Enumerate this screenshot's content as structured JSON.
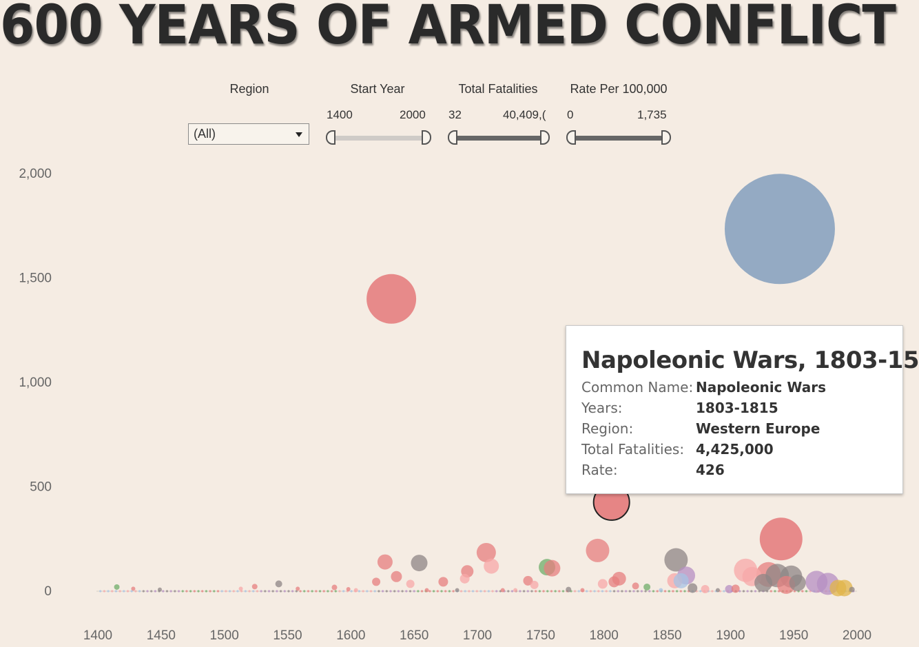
{
  "title": "600 YEARS OF ARMED CONFLICT",
  "filters": {
    "region": {
      "label": "Region",
      "selected": "(All)"
    },
    "start_year": {
      "label": "Start Year",
      "min": "1400",
      "max": "2000"
    },
    "total_fatalities": {
      "label": "Total Fatalities",
      "min": "32",
      "max": "40,409,("
    },
    "rate": {
      "label": "Rate Per 100,000",
      "min": "0",
      "max": "1,735"
    }
  },
  "tooltip": {
    "title": "Napoleonic Wars, 1803-15",
    "rows": [
      {
        "key": "Common Name:",
        "value": "Napoleonic Wars"
      },
      {
        "key": "Years:",
        "value": "1803-1815"
      },
      {
        "key": "Region:",
        "value": "Western Europe"
      },
      {
        "key": "Total Fatalities:",
        "value": "4,425,000"
      },
      {
        "key": "Rate:",
        "value": "426"
      }
    ]
  },
  "colors": {
    "background": "#f5ece3",
    "blue": "#8aa3bf",
    "red": "#e57f7f",
    "pink": "#f7a8a8",
    "grey": "#8e8585",
    "green": "#6fae6a",
    "purple": "#b58fc3",
    "gold": "#e0b44a",
    "lightblue": "#a7c3e4"
  },
  "chart_data": {
    "type": "scatter",
    "title": "",
    "xlabel": "",
    "ylabel": "",
    "x_ticks": [
      "1400",
      "1450",
      "1500",
      "1550",
      "1600",
      "1650",
      "1700",
      "1750",
      "1800",
      "1850",
      "1900",
      "1950",
      "2000"
    ],
    "y_ticks": [
      "0",
      "500",
      "1,000",
      "1,500",
      "2,000"
    ],
    "xlim": [
      1400,
      2000
    ],
    "ylim": [
      0,
      2000
    ],
    "points": [
      {
        "x": 1939,
        "y": 1735,
        "size": 80,
        "color": "blue"
      },
      {
        "x": 1632,
        "y": 1400,
        "size": 36,
        "color": "red"
      },
      {
        "x": 1806,
        "y": 426,
        "size": 26,
        "color": "red",
        "highlighted": true,
        "label": "Napoleonic Wars"
      },
      {
        "x": 1940,
        "y": 250,
        "size": 31,
        "color": "red"
      },
      {
        "x": 1795,
        "y": 195,
        "size": 17,
        "color": "red"
      },
      {
        "x": 1857,
        "y": 150,
        "size": 17,
        "color": "grey"
      },
      {
        "x": 1707,
        "y": 185,
        "size": 14,
        "color": "red"
      },
      {
        "x": 1627,
        "y": 140,
        "size": 11,
        "color": "red"
      },
      {
        "x": 1654,
        "y": 135,
        "size": 12,
        "color": "grey"
      },
      {
        "x": 1711,
        "y": 120,
        "size": 11,
        "color": "pink"
      },
      {
        "x": 1912,
        "y": 100,
        "size": 17,
        "color": "pink"
      },
      {
        "x": 1755,
        "y": 115,
        "size": 12,
        "color": "green"
      },
      {
        "x": 1759,
        "y": 110,
        "size": 12,
        "color": "red"
      },
      {
        "x": 1692,
        "y": 95,
        "size": 9,
        "color": "red"
      },
      {
        "x": 1636,
        "y": 70,
        "size": 8,
        "color": "red"
      },
      {
        "x": 1917,
        "y": 70,
        "size": 14,
        "color": "pink"
      },
      {
        "x": 1930,
        "y": 80,
        "size": 18,
        "color": "red"
      },
      {
        "x": 1937,
        "y": 75,
        "size": 17,
        "color": "grey"
      },
      {
        "x": 1948,
        "y": 70,
        "size": 16,
        "color": "grey"
      },
      {
        "x": 1865,
        "y": 75,
        "size": 13,
        "color": "purple"
      },
      {
        "x": 1856,
        "y": 50,
        "size": 11,
        "color": "pink"
      },
      {
        "x": 1861,
        "y": 50,
        "size": 11,
        "color": "lightblue"
      },
      {
        "x": 1812,
        "y": 60,
        "size": 10,
        "color": "red"
      },
      {
        "x": 1808,
        "y": 45,
        "size": 8,
        "color": "red"
      },
      {
        "x": 1799,
        "y": 35,
        "size": 7,
        "color": "pink"
      },
      {
        "x": 1968,
        "y": 45,
        "size": 16,
        "color": "purple"
      },
      {
        "x": 1977,
        "y": 35,
        "size": 16,
        "color": "purple"
      },
      {
        "x": 1926,
        "y": 40,
        "size": 13,
        "color": "grey"
      },
      {
        "x": 1944,
        "y": 30,
        "size": 13,
        "color": "red"
      },
      {
        "x": 1953,
        "y": 40,
        "size": 12,
        "color": "grey"
      },
      {
        "x": 1985,
        "y": 15,
        "size": 12,
        "color": "gold"
      },
      {
        "x": 1990,
        "y": 15,
        "size": 12,
        "color": "gold"
      },
      {
        "x": 1620,
        "y": 45,
        "size": 6,
        "color": "red"
      },
      {
        "x": 1647,
        "y": 35,
        "size": 6,
        "color": "pink"
      },
      {
        "x": 1673,
        "y": 45,
        "size": 7,
        "color": "red"
      },
      {
        "x": 1690,
        "y": 60,
        "size": 7,
        "color": "pink"
      },
      {
        "x": 1740,
        "y": 50,
        "size": 7,
        "color": "red"
      },
      {
        "x": 1745,
        "y": 30,
        "size": 6,
        "color": "pink"
      },
      {
        "x": 1772,
        "y": 8,
        "size": 4,
        "color": "grey"
      },
      {
        "x": 1825,
        "y": 25,
        "size": 5,
        "color": "red"
      },
      {
        "x": 1834,
        "y": 20,
        "size": 5,
        "color": "green"
      },
      {
        "x": 1870,
        "y": 15,
        "size": 7,
        "color": "grey"
      },
      {
        "x": 1880,
        "y": 10,
        "size": 6,
        "color": "pink"
      },
      {
        "x": 1899,
        "y": 10,
        "size": 6,
        "color": "purple"
      },
      {
        "x": 1904,
        "y": 12,
        "size": 6,
        "color": "red"
      },
      {
        "x": 1415,
        "y": 20,
        "size": 4,
        "color": "green"
      },
      {
        "x": 1428,
        "y": 12,
        "size": 3,
        "color": "red"
      },
      {
        "x": 1449,
        "y": 8,
        "size": 3,
        "color": "grey"
      },
      {
        "x": 1513,
        "y": 12,
        "size": 3,
        "color": "pink"
      },
      {
        "x": 1524,
        "y": 22,
        "size": 4,
        "color": "red"
      },
      {
        "x": 1543,
        "y": 35,
        "size": 5,
        "color": "grey"
      },
      {
        "x": 1558,
        "y": 12,
        "size": 3,
        "color": "red"
      },
      {
        "x": 1587,
        "y": 18,
        "size": 4,
        "color": "red"
      },
      {
        "x": 1598,
        "y": 10,
        "size": 3,
        "color": "red"
      },
      {
        "x": 1604,
        "y": 5,
        "size": 3,
        "color": "pink"
      },
      {
        "x": 1660,
        "y": 5,
        "size": 3,
        "color": "red"
      },
      {
        "x": 1684,
        "y": 5,
        "size": 3,
        "color": "grey"
      },
      {
        "x": 1720,
        "y": 5,
        "size": 3,
        "color": "red"
      },
      {
        "x": 1730,
        "y": 5,
        "size": 3,
        "color": "pink"
      },
      {
        "x": 1783,
        "y": 5,
        "size": 3,
        "color": "red"
      },
      {
        "x": 1845,
        "y": 5,
        "size": 3,
        "color": "lightblue"
      },
      {
        "x": 1890,
        "y": 5,
        "size": 3,
        "color": "grey"
      },
      {
        "x": 1996,
        "y": 8,
        "size": 4,
        "color": "grey"
      }
    ]
  }
}
